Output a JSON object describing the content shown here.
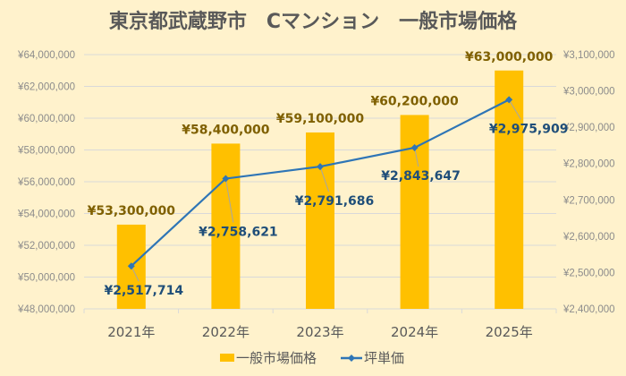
{
  "chart_data": {
    "type": "bar+line",
    "title": "東京都武蔵野市　Cマンション　一般市場価格",
    "categories": [
      "2021年",
      "2022年",
      "2023年",
      "2024年",
      "2025年"
    ],
    "series": [
      {
        "name": "一般市場価格",
        "type": "bar",
        "axis": "left",
        "color": "#ffc000",
        "values": [
          53300000,
          58400000,
          59100000,
          60200000,
          63000000
        ],
        "labels": [
          "¥53,300,000",
          "¥58,400,000",
          "¥59,100,000",
          "¥60,200,000",
          "¥63,000,000"
        ]
      },
      {
        "name": "坪単価",
        "type": "line",
        "axis": "right",
        "color": "#2e75b6",
        "values": [
          2517714,
          2758621,
          2791686,
          2843647,
          2975909
        ],
        "labels": [
          "¥2,517,714",
          "¥2,758,621",
          "¥2,791,686",
          "¥2,843,647",
          "¥2,975,909"
        ]
      }
    ],
    "left_axis": {
      "range": [
        48000000,
        64000000
      ],
      "ticks": [
        "¥48,000,000",
        "¥50,000,000",
        "¥52,000,000",
        "¥54,000,000",
        "¥56,000,000",
        "¥58,000,000",
        "¥60,000,000",
        "¥62,000,000",
        "¥64,000,000"
      ]
    },
    "right_axis": {
      "range": [
        2400000,
        3100000
      ],
      "ticks": [
        "¥2,400,000",
        "¥2,500,000",
        "¥2,600,000",
        "¥2,700,000",
        "¥2,800,000",
        "¥2,900,000",
        "¥3,000,000",
        "¥3,100,000"
      ]
    },
    "grid": true,
    "legend": "bottom"
  }
}
